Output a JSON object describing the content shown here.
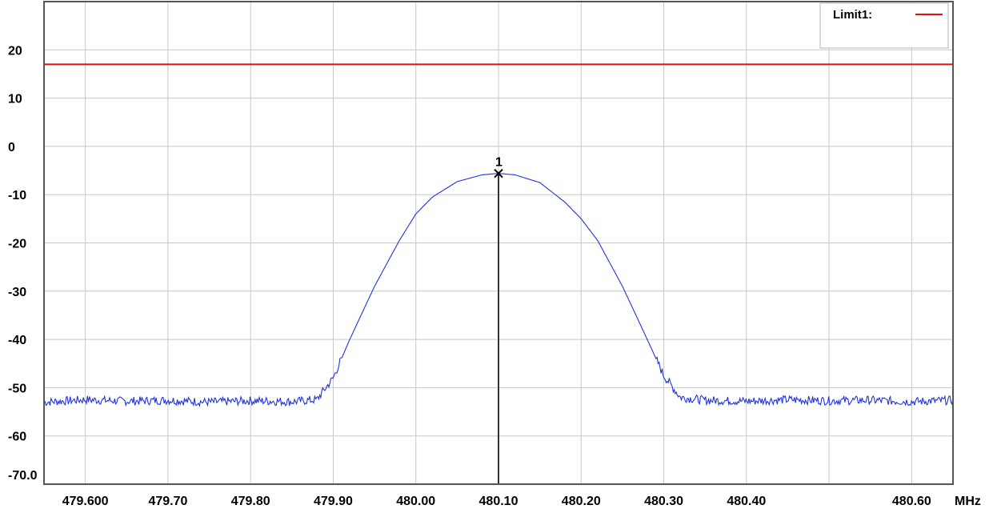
{
  "chart_data": {
    "type": "line",
    "title": "",
    "xlabel": "",
    "ylabel": "",
    "x_unit_label": "MHz",
    "xlim": [
      479.55,
      480.65
    ],
    "ylim": [
      -70,
      30
    ],
    "grid": true,
    "legend_placement": "top-right",
    "x_ticks": [
      {
        "value": 479.6,
        "label": "479.600"
      },
      {
        "value": 479.7,
        "label": "479.70"
      },
      {
        "value": 479.8,
        "label": "479.80"
      },
      {
        "value": 479.9,
        "label": "479.90"
      },
      {
        "value": 480.0,
        "label": "480.00"
      },
      {
        "value": 480.1,
        "label": "480.10"
      },
      {
        "value": 480.2,
        "label": "480.20"
      },
      {
        "value": 480.3,
        "label": "480.30"
      },
      {
        "value": 480.4,
        "label": "480.40"
      },
      {
        "value": 480.6,
        "label": "480.60"
      }
    ],
    "x_gridlines": [
      479.6,
      479.7,
      479.8,
      479.9,
      480.0,
      480.1,
      480.2,
      480.3,
      480.4,
      480.5,
      480.6
    ],
    "y_ticks": [
      {
        "value": 20,
        "label": "20"
      },
      {
        "value": 10,
        "label": "10"
      },
      {
        "value": 0,
        "label": "0"
      },
      {
        "value": -10,
        "label": "-10"
      },
      {
        "value": -20,
        "label": "-20"
      },
      {
        "value": -30,
        "label": "-30"
      },
      {
        "value": -40,
        "label": "-40"
      },
      {
        "value": -50,
        "label": "-50"
      },
      {
        "value": -60,
        "label": "-60"
      },
      {
        "value": -70,
        "label": "-70.0"
      }
    ],
    "series": [
      {
        "color": "#2233dd",
        "x": [
          479.55,
          479.6,
          479.65,
          479.7,
          479.75,
          479.8,
          479.85,
          479.88,
          479.9,
          479.92,
          479.95,
          479.98,
          480.0,
          480.02,
          480.05,
          480.08,
          480.1,
          480.12,
          480.15,
          480.18,
          480.2,
          480.22,
          480.25,
          480.28,
          480.3,
          480.32,
          480.35,
          480.4,
          480.45,
          480.5,
          480.55,
          480.6,
          480.65
        ],
        "y": [
          -53,
          -52.5,
          -52.8,
          -52.6,
          -53,
          -52.7,
          -52.9,
          -52.5,
          -48,
          -40,
          -29,
          -19.5,
          -14,
          -10.5,
          -7.3,
          -5.9,
          -5.6,
          -5.9,
          -7.5,
          -11.5,
          -15,
          -19.5,
          -29,
          -40,
          -47.5,
          -52,
          -52.6,
          -52.8,
          -52.5,
          -52.7,
          -52.6,
          -52.9,
          -52.6
        ]
      }
    ],
    "limit_lines": [
      {
        "name": "Limit1:",
        "value": 17,
        "color": "#e01010"
      }
    ],
    "markers": [
      {
        "label": "1",
        "x": 480.1,
        "y": -5.6
      }
    ]
  }
}
